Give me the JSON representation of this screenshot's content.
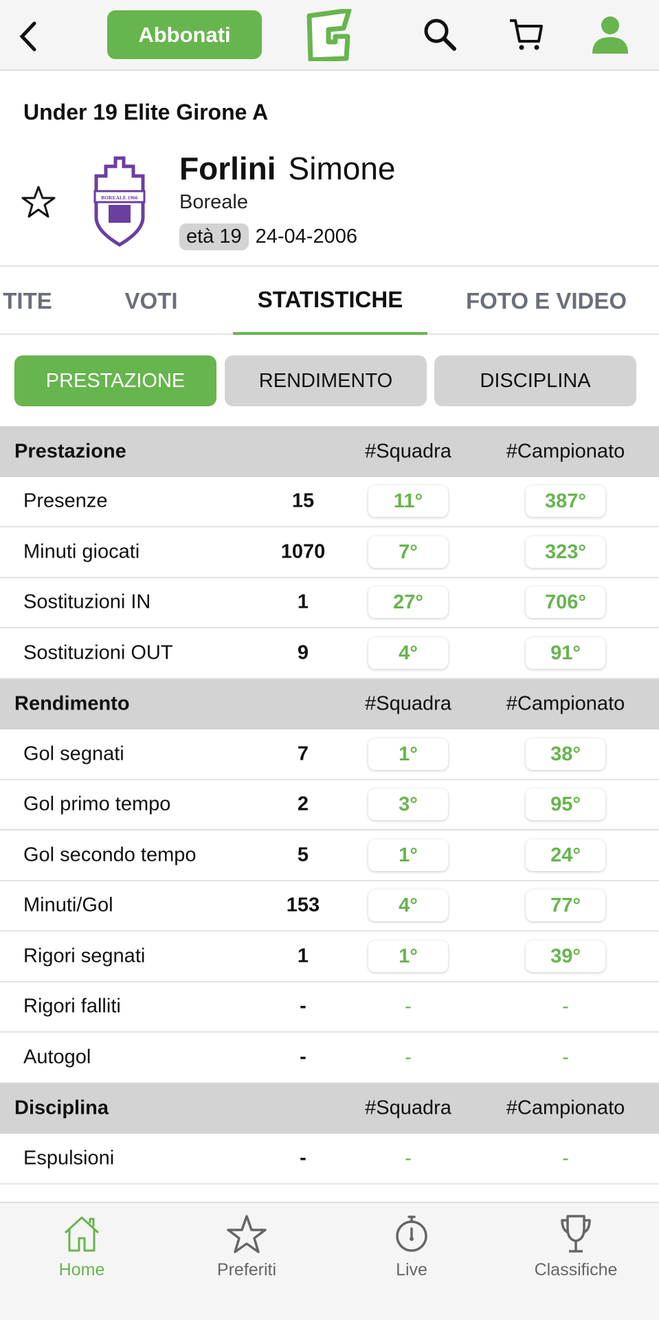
{
  "header": {
    "subscribe_label": "Abbonati",
    "brand_logo_text": "G",
    "icons": [
      "back-icon",
      "search-icon",
      "cart-icon",
      "user-icon"
    ],
    "accent": "#67b54e"
  },
  "player": {
    "league": "Under 19 Elite  Girone A",
    "surname": "Forlini",
    "first_name": "Simone",
    "team": "Boreale",
    "age": "età 19",
    "birth_date": "24-04-2006",
    "crest_text": "BOREALE 1966"
  },
  "tabs": [
    {
      "label": "TITE"
    },
    {
      "label": "VOTI"
    },
    {
      "label": "STATISTICHE",
      "active": true
    },
    {
      "label": "FOTO E VIDEO"
    }
  ],
  "segments": [
    {
      "label": "PRESTAZIONE",
      "active": true
    },
    {
      "label": "RENDIMENTO"
    },
    {
      "label": "DISCIPLINA"
    }
  ],
  "sections": [
    {
      "title": "Prestazione",
      "col_team": "#Squadra",
      "col_league": "#Campionato",
      "rows": [
        {
          "label": "Presenze",
          "value": "15",
          "team": "11°",
          "league": "387°"
        },
        {
          "label": "Minuti giocati",
          "value": "1070",
          "team": "7°",
          "league": "323°"
        },
        {
          "label": "Sostituzioni IN",
          "value": "1",
          "team": "27°",
          "league": "706°"
        },
        {
          "label": "Sostituzioni OUT",
          "value": "9",
          "team": "4°",
          "league": "91°"
        }
      ]
    },
    {
      "title": "Rendimento",
      "col_team": "#Squadra",
      "col_league": "#Campionato",
      "rows": [
        {
          "label": "Gol segnati",
          "value": "7",
          "team": "1°",
          "league": "38°"
        },
        {
          "label": "Gol primo tempo",
          "value": "2",
          "team": "3°",
          "league": "95°"
        },
        {
          "label": "Gol secondo tempo",
          "value": "5",
          "team": "1°",
          "league": "24°"
        },
        {
          "label": "Minuti/Gol",
          "value": "153",
          "team": "4°",
          "league": "77°"
        },
        {
          "label": "Rigori segnati",
          "value": "1",
          "team": "1°",
          "league": "39°"
        },
        {
          "label": "Rigori falliti",
          "value": "-",
          "team": "-",
          "league": "-"
        },
        {
          "label": "Autogol",
          "value": "-",
          "team": "-",
          "league": "-"
        }
      ]
    },
    {
      "title": "Disciplina",
      "col_team": "#Squadra",
      "col_league": "#Campionato",
      "rows": [
        {
          "label": "Espulsioni",
          "value": "-",
          "team": "-",
          "league": "-"
        }
      ]
    }
  ],
  "bottom_nav": [
    {
      "label": "Home",
      "icon": "home-icon",
      "active": true
    },
    {
      "label": "Preferiti",
      "icon": "star-icon"
    },
    {
      "label": "Live",
      "icon": "stopwatch-icon"
    },
    {
      "label": "Classifiche",
      "icon": "trophy-icon"
    }
  ]
}
